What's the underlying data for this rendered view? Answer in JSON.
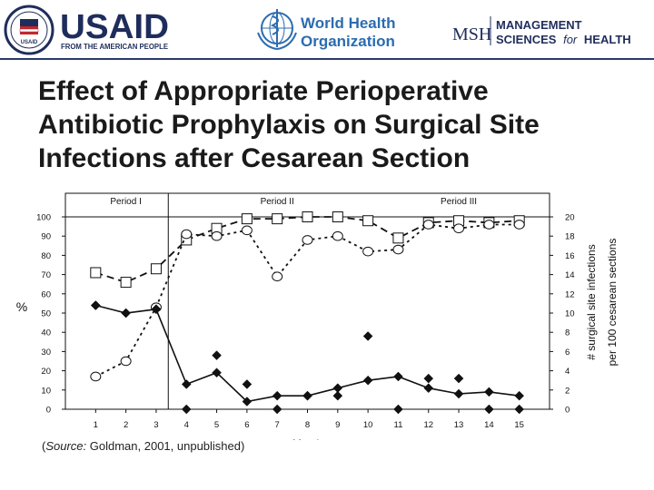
{
  "header": {
    "usaid": {
      "name": "USAID",
      "tagline": "FROM THE AMERICAN PEOPLE",
      "seal_text": "USAID"
    },
    "who": {
      "line1": "World Health",
      "line2": "Organization"
    },
    "msh": {
      "abbr": "MSH",
      "line1": "MANAGEMENT",
      "line2_a": "SCIENCES",
      "line2_b": "for",
      "line2_c": "HEALTH"
    }
  },
  "slide": {
    "title": "Effect of Appropriate Perioperative Antibiotic Prophylaxis on Surgical Site Infections after Cesarean Section",
    "source_prefix": "(",
    "source_label": "Source:",
    "source_rest": " Goldman, 2001, unpublished)"
  },
  "colors": {
    "brand_navy": "#1f2d5c",
    "usaid_red": "#c1272d",
    "who_blue": "#2b6cb0",
    "ink": "#111111"
  },
  "chart_data": {
    "type": "line",
    "periods": [
      {
        "label": "Period I",
        "from": 1,
        "to": 3
      },
      {
        "label": "Period II",
        "from": 4,
        "to": 10
      },
      {
        "label": "Period III",
        "from": 11,
        "to": 15
      }
    ],
    "period_boundary_x": 3.4,
    "x": [
      1,
      2,
      3,
      4,
      5,
      6,
      7,
      8,
      9,
      10,
      11,
      12,
      13,
      14,
      15
    ],
    "xlabel": "Month",
    "ylabel_left": "%",
    "ylabel_right_line1": "# surgical site infections",
    "ylabel_right_line2": "per 100 cesarean sections",
    "ylim_left": [
      0,
      100
    ],
    "yticks_left": [
      0,
      10,
      20,
      30,
      40,
      50,
      60,
      70,
      80,
      90,
      100
    ],
    "ylim_right": [
      0,
      20
    ],
    "yticks_right": [
      0,
      2,
      4,
      6,
      8,
      10,
      12,
      14,
      16,
      18,
      20
    ],
    "series": [
      {
        "marker": "square",
        "axis": "left",
        "line": "dashed",
        "values": [
          71,
          66,
          73,
          88,
          94,
          99,
          99,
          100,
          100,
          98,
          89,
          97,
          98,
          97,
          98
        ]
      },
      {
        "marker": "circle",
        "axis": "left",
        "line": "dotted",
        "values": [
          17,
          25,
          53,
          91,
          90,
          93,
          69,
          88,
          90,
          82,
          83,
          96,
          94,
          96,
          96
        ]
      },
      {
        "marker": "diamond",
        "axis": "right",
        "line": "solid",
        "values": [
          10.8,
          10,
          10.4,
          2.6,
          3.8,
          0.8,
          1.4,
          1.4,
          2.2,
          3,
          3.4,
          2.2,
          1.6,
          1.8,
          1.4
        ]
      },
      {
        "marker": "diamond",
        "axis": "right",
        "line": "none",
        "values": [
          10.8,
          10,
          10.4,
          0,
          5.6,
          2.6,
          0,
          1.4,
          1.4,
          7.6,
          0,
          3.2,
          3.2,
          0,
          0
        ]
      }
    ],
    "grid": false,
    "legend": "none"
  }
}
